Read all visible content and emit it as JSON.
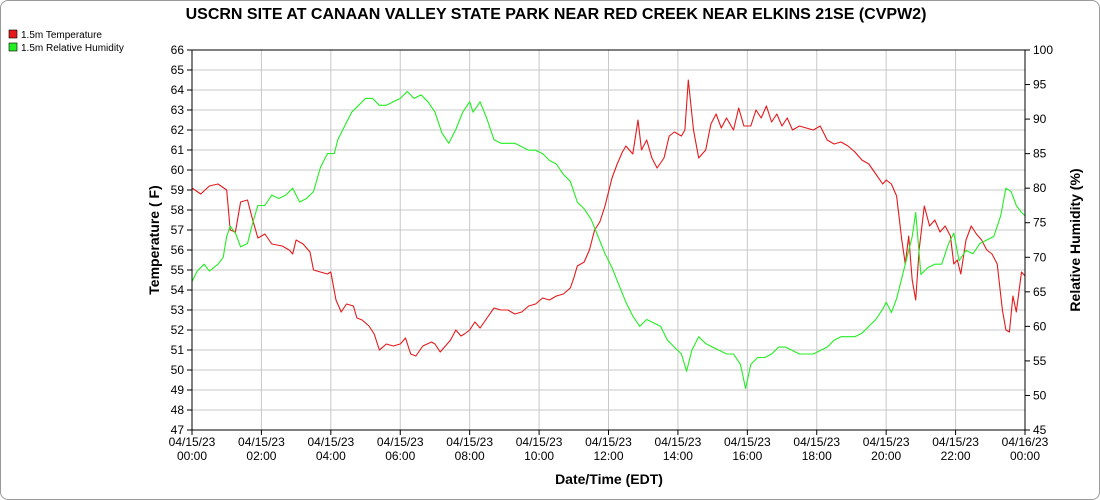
{
  "chart_data": {
    "type": "line",
    "title": "USCRN SITE AT CANAAN VALLEY STATE PARK NEAR RED CREEK NEAR ELKINS 21SE (CVPW2)",
    "xlabel": "Date/Time (EDT)",
    "ylabel_left": "Temperature ( F)",
    "ylabel_right": "Relative Humidity (%)",
    "ylim_left": [
      47,
      66
    ],
    "ylim_right": [
      45,
      100
    ],
    "xlim_hours": [
      0,
      24
    ],
    "grid": true,
    "legend_position": "top-left",
    "x_tick_labels": [
      {
        "date": "04/15/23",
        "time": "00:00"
      },
      {
        "date": "04/15/23",
        "time": "02:00"
      },
      {
        "date": "04/15/23",
        "time": "04:00"
      },
      {
        "date": "04/15/23",
        "time": "06:00"
      },
      {
        "date": "04/15/23",
        "time": "08:00"
      },
      {
        "date": "04/15/23",
        "time": "10:00"
      },
      {
        "date": "04/15/23",
        "time": "12:00"
      },
      {
        "date": "04/15/23",
        "time": "14:00"
      },
      {
        "date": "04/15/23",
        "time": "16:00"
      },
      {
        "date": "04/15/23",
        "time": "18:00"
      },
      {
        "date": "04/15/23",
        "time": "20:00"
      },
      {
        "date": "04/15/23",
        "time": "22:00"
      },
      {
        "date": "04/16/23",
        "time": "00:00"
      }
    ],
    "y_ticks_left": [
      47,
      48,
      49,
      50,
      51,
      52,
      53,
      54,
      55,
      56,
      57,
      58,
      59,
      60,
      61,
      62,
      63,
      64,
      65,
      66
    ],
    "y_ticks_right": [
      45,
      50,
      55,
      60,
      65,
      70,
      75,
      80,
      85,
      90,
      95,
      100
    ],
    "series": [
      {
        "name": "1.5m Temperature",
        "axis": "left",
        "color": "#e41a1c",
        "points": [
          [
            0.0,
            59.1
          ],
          [
            0.25,
            58.8
          ],
          [
            0.5,
            59.2
          ],
          [
            0.75,
            59.3
          ],
          [
            1.0,
            59.0
          ],
          [
            1.1,
            57.0
          ],
          [
            1.25,
            56.9
          ],
          [
            1.4,
            58.4
          ],
          [
            1.6,
            58.5
          ],
          [
            1.75,
            57.5
          ],
          [
            1.9,
            56.6
          ],
          [
            2.1,
            56.8
          ],
          [
            2.3,
            56.3
          ],
          [
            2.6,
            56.2
          ],
          [
            2.8,
            56.0
          ],
          [
            2.9,
            55.8
          ],
          [
            3.0,
            56.5
          ],
          [
            3.2,
            56.3
          ],
          [
            3.4,
            55.9
          ],
          [
            3.5,
            55.0
          ],
          [
            3.7,
            54.9
          ],
          [
            3.9,
            54.8
          ],
          [
            4.0,
            54.9
          ],
          [
            4.15,
            53.5
          ],
          [
            4.3,
            52.9
          ],
          [
            4.45,
            53.3
          ],
          [
            4.65,
            53.2
          ],
          [
            4.75,
            52.6
          ],
          [
            4.9,
            52.5
          ],
          [
            5.1,
            52.2
          ],
          [
            5.25,
            51.8
          ],
          [
            5.4,
            51.0
          ],
          [
            5.6,
            51.3
          ],
          [
            5.8,
            51.2
          ],
          [
            6.0,
            51.3
          ],
          [
            6.15,
            51.6
          ],
          [
            6.3,
            50.8
          ],
          [
            6.45,
            50.7
          ],
          [
            6.65,
            51.2
          ],
          [
            6.9,
            51.4
          ],
          [
            7.0,
            51.3
          ],
          [
            7.15,
            50.9
          ],
          [
            7.3,
            51.2
          ],
          [
            7.45,
            51.5
          ],
          [
            7.6,
            52.0
          ],
          [
            7.75,
            51.7
          ],
          [
            7.85,
            51.8
          ],
          [
            8.0,
            52.0
          ],
          [
            8.15,
            52.4
          ],
          [
            8.3,
            52.1
          ],
          [
            8.5,
            52.6
          ],
          [
            8.7,
            53.1
          ],
          [
            8.9,
            53.0
          ],
          [
            9.1,
            53.0
          ],
          [
            9.3,
            52.8
          ],
          [
            9.5,
            52.9
          ],
          [
            9.7,
            53.2
          ],
          [
            9.9,
            53.3
          ],
          [
            10.1,
            53.6
          ],
          [
            10.3,
            53.5
          ],
          [
            10.5,
            53.7
          ],
          [
            10.7,
            53.8
          ],
          [
            10.9,
            54.1
          ],
          [
            11.0,
            54.6
          ],
          [
            11.1,
            55.2
          ],
          [
            11.3,
            55.4
          ],
          [
            11.45,
            56.0
          ],
          [
            11.6,
            57.0
          ],
          [
            11.75,
            57.4
          ],
          [
            11.9,
            58.2
          ],
          [
            12.0,
            58.9
          ],
          [
            12.1,
            59.6
          ],
          [
            12.25,
            60.3
          ],
          [
            12.4,
            60.9
          ],
          [
            12.5,
            61.2
          ],
          [
            12.7,
            60.8
          ],
          [
            12.85,
            62.5
          ],
          [
            12.95,
            61.0
          ],
          [
            13.1,
            61.5
          ],
          [
            13.25,
            60.6
          ],
          [
            13.4,
            60.1
          ],
          [
            13.6,
            60.6
          ],
          [
            13.75,
            61.7
          ],
          [
            13.9,
            61.9
          ],
          [
            14.1,
            61.7
          ],
          [
            14.2,
            62.0
          ],
          [
            14.3,
            64.5
          ],
          [
            14.45,
            62.0
          ],
          [
            14.6,
            60.6
          ],
          [
            14.8,
            61.0
          ],
          [
            14.95,
            62.3
          ],
          [
            15.1,
            62.8
          ],
          [
            15.25,
            62.1
          ],
          [
            15.4,
            62.6
          ],
          [
            15.6,
            62.0
          ],
          [
            15.75,
            63.1
          ],
          [
            15.9,
            62.2
          ],
          [
            16.1,
            62.2
          ],
          [
            16.25,
            63.0
          ],
          [
            16.4,
            62.6
          ],
          [
            16.55,
            63.2
          ],
          [
            16.7,
            62.4
          ],
          [
            16.85,
            62.8
          ],
          [
            17.0,
            62.2
          ],
          [
            17.15,
            62.6
          ],
          [
            17.3,
            62.0
          ],
          [
            17.5,
            62.2
          ],
          [
            17.7,
            62.1
          ],
          [
            17.9,
            62.0
          ],
          [
            18.1,
            62.2
          ],
          [
            18.3,
            61.5
          ],
          [
            18.5,
            61.3
          ],
          [
            18.7,
            61.4
          ],
          [
            18.9,
            61.2
          ],
          [
            19.1,
            60.9
          ],
          [
            19.3,
            60.5
          ],
          [
            19.5,
            60.3
          ],
          [
            19.7,
            59.8
          ],
          [
            19.9,
            59.3
          ],
          [
            20.0,
            59.5
          ],
          [
            20.15,
            59.3
          ],
          [
            20.3,
            58.7
          ],
          [
            20.45,
            56.5
          ],
          [
            20.55,
            55.3
          ],
          [
            20.65,
            56.7
          ],
          [
            20.75,
            54.5
          ],
          [
            20.85,
            53.5
          ],
          [
            20.95,
            56.0
          ],
          [
            21.1,
            58.2
          ],
          [
            21.25,
            57.2
          ],
          [
            21.4,
            57.5
          ],
          [
            21.55,
            56.9
          ],
          [
            21.7,
            57.2
          ],
          [
            21.85,
            56.7
          ],
          [
            21.95,
            55.3
          ],
          [
            22.05,
            55.5
          ],
          [
            22.15,
            54.8
          ],
          [
            22.3,
            56.5
          ],
          [
            22.45,
            57.2
          ],
          [
            22.6,
            56.8
          ],
          [
            22.75,
            56.5
          ],
          [
            22.9,
            56.0
          ],
          [
            23.05,
            55.8
          ],
          [
            23.2,
            55.3
          ],
          [
            23.35,
            53.0
          ],
          [
            23.45,
            52.0
          ],
          [
            23.55,
            51.9
          ],
          [
            23.65,
            53.7
          ],
          [
            23.75,
            52.9
          ],
          [
            23.9,
            54.9
          ],
          [
            24.0,
            54.7
          ]
        ]
      },
      {
        "name": "1.5m Relative Humidity",
        "axis": "right",
        "color": "#22ee22",
        "points": [
          [
            0.0,
            66.5
          ],
          [
            0.15,
            68.0
          ],
          [
            0.35,
            69.0
          ],
          [
            0.5,
            68.0
          ],
          [
            0.75,
            69.0
          ],
          [
            0.9,
            70.0
          ],
          [
            1.0,
            73.0
          ],
          [
            1.1,
            74.5
          ],
          [
            1.25,
            73.5
          ],
          [
            1.4,
            71.5
          ],
          [
            1.6,
            72.0
          ],
          [
            1.75,
            75.0
          ],
          [
            1.9,
            77.5
          ],
          [
            2.1,
            77.5
          ],
          [
            2.3,
            79.0
          ],
          [
            2.5,
            78.5
          ],
          [
            2.7,
            79.0
          ],
          [
            2.9,
            80.0
          ],
          [
            3.1,
            78.0
          ],
          [
            3.3,
            78.5
          ],
          [
            3.5,
            79.5
          ],
          [
            3.7,
            83.0
          ],
          [
            3.9,
            85.0
          ],
          [
            4.1,
            85.0
          ],
          [
            4.2,
            87.0
          ],
          [
            4.4,
            89.0
          ],
          [
            4.6,
            91.0
          ],
          [
            4.8,
            92.0
          ],
          [
            5.0,
            93.0
          ],
          [
            5.2,
            93.0
          ],
          [
            5.4,
            92.0
          ],
          [
            5.6,
            92.0
          ],
          [
            5.8,
            92.5
          ],
          [
            6.0,
            93.0
          ],
          [
            6.2,
            94.0
          ],
          [
            6.4,
            93.0
          ],
          [
            6.6,
            93.5
          ],
          [
            6.8,
            92.5
          ],
          [
            7.0,
            91.0
          ],
          [
            7.2,
            88.0
          ],
          [
            7.4,
            86.5
          ],
          [
            7.6,
            88.5
          ],
          [
            7.8,
            91.0
          ],
          [
            8.0,
            92.5
          ],
          [
            8.1,
            91.0
          ],
          [
            8.3,
            92.5
          ],
          [
            8.5,
            90.0
          ],
          [
            8.7,
            87.0
          ],
          [
            8.9,
            86.5
          ],
          [
            9.1,
            86.5
          ],
          [
            9.3,
            86.5
          ],
          [
            9.5,
            86.0
          ],
          [
            9.7,
            85.5
          ],
          [
            9.9,
            85.5
          ],
          [
            10.1,
            85.0
          ],
          [
            10.3,
            84.0
          ],
          [
            10.5,
            83.5
          ],
          [
            10.7,
            82.0
          ],
          [
            10.9,
            81.0
          ],
          [
            11.1,
            78.0
          ],
          [
            11.3,
            77.0
          ],
          [
            11.5,
            75.5
          ],
          [
            11.7,
            73.0
          ],
          [
            11.9,
            70.5
          ],
          [
            12.1,
            68.5
          ],
          [
            12.3,
            66.0
          ],
          [
            12.5,
            63.5
          ],
          [
            12.7,
            61.5
          ],
          [
            12.9,
            60.0
          ],
          [
            13.1,
            61.0
          ],
          [
            13.3,
            60.5
          ],
          [
            13.5,
            60.0
          ],
          [
            13.7,
            58.0
          ],
          [
            13.9,
            57.0
          ],
          [
            14.1,
            56.0
          ],
          [
            14.25,
            53.5
          ],
          [
            14.4,
            56.5
          ],
          [
            14.6,
            58.5
          ],
          [
            14.8,
            57.5
          ],
          [
            15.0,
            57.0
          ],
          [
            15.2,
            56.5
          ],
          [
            15.4,
            56.0
          ],
          [
            15.6,
            56.0
          ],
          [
            15.8,
            54.5
          ],
          [
            15.95,
            51.0
          ],
          [
            16.1,
            54.5
          ],
          [
            16.3,
            55.5
          ],
          [
            16.5,
            55.5
          ],
          [
            16.7,
            56.0
          ],
          [
            16.9,
            57.0
          ],
          [
            17.1,
            57.0
          ],
          [
            17.3,
            56.5
          ],
          [
            17.5,
            56.0
          ],
          [
            17.7,
            56.0
          ],
          [
            17.9,
            56.0
          ],
          [
            18.1,
            56.5
          ],
          [
            18.3,
            57.0
          ],
          [
            18.5,
            58.0
          ],
          [
            18.7,
            58.5
          ],
          [
            18.9,
            58.5
          ],
          [
            19.1,
            58.5
          ],
          [
            19.3,
            59.0
          ],
          [
            19.5,
            60.0
          ],
          [
            19.7,
            61.0
          ],
          [
            19.9,
            62.5
          ],
          [
            20.0,
            63.5
          ],
          [
            20.15,
            62.0
          ],
          [
            20.3,
            64.0
          ],
          [
            20.45,
            67.0
          ],
          [
            20.6,
            70.0
          ],
          [
            20.75,
            73.0
          ],
          [
            20.85,
            76.5
          ],
          [
            21.0,
            67.5
          ],
          [
            21.2,
            68.5
          ],
          [
            21.4,
            69.0
          ],
          [
            21.6,
            69.0
          ],
          [
            21.8,
            72.0
          ],
          [
            21.95,
            73.5
          ],
          [
            22.1,
            69.5
          ],
          [
            22.3,
            71.0
          ],
          [
            22.5,
            70.5
          ],
          [
            22.7,
            72.0
          ],
          [
            22.9,
            72.5
          ],
          [
            23.1,
            73.0
          ],
          [
            23.3,
            76.0
          ],
          [
            23.45,
            80.0
          ],
          [
            23.6,
            79.5
          ],
          [
            23.75,
            77.5
          ],
          [
            23.9,
            76.5
          ],
          [
            24.0,
            76.0
          ]
        ]
      }
    ]
  }
}
